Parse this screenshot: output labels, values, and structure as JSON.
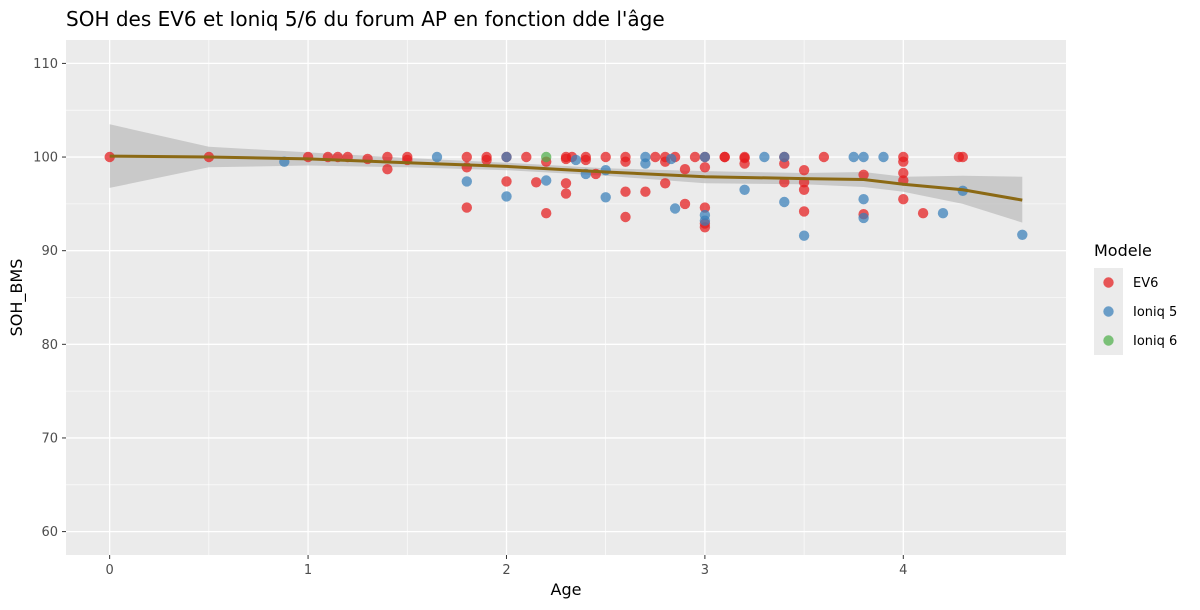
{
  "chart_data": {
    "type": "scatter",
    "title": "SOH des EV6 et Ioniq 5/6 du forum AP en fonction dde l'âge",
    "xlabel": "Age",
    "ylabel": "SOH_BMS",
    "xlim": [
      -0.22,
      4.82
    ],
    "ylim": [
      57.5,
      112.5
    ],
    "xticks": [
      "0",
      "1",
      "2",
      "3",
      "4"
    ],
    "yticks": [
      "60",
      "70",
      "80",
      "90",
      "100",
      "110"
    ],
    "grid": true,
    "legend": {
      "title": "Modele",
      "position": "right"
    },
    "colors": {
      "EV6": "#e41a1c",
      "Ioniq 5": "#377eb8",
      "Ioniq 6": "#4daf4a",
      "smooth": "#8b6914",
      "ribbon": "#bdbdbd",
      "panel": "#ebebeb"
    },
    "series": [
      {
        "name": "EV6",
        "points": [
          [
            0.0,
            100.0
          ],
          [
            0.5,
            100.0
          ],
          [
            1.0,
            100.0
          ],
          [
            1.1,
            100.0
          ],
          [
            1.15,
            100.0
          ],
          [
            1.2,
            100.0
          ],
          [
            1.3,
            99.8
          ],
          [
            1.4,
            100.0
          ],
          [
            1.4,
            98.7
          ],
          [
            1.5,
            100.0
          ],
          [
            1.5,
            99.7
          ],
          [
            1.8,
            100.0
          ],
          [
            1.8,
            98.9
          ],
          [
            1.8,
            94.6
          ],
          [
            1.9,
            100.0
          ],
          [
            1.9,
            99.7
          ],
          [
            2.0,
            100.0
          ],
          [
            2.0,
            97.4
          ],
          [
            2.1,
            100.0
          ],
          [
            2.15,
            97.3
          ],
          [
            2.2,
            99.5
          ],
          [
            2.2,
            94.0
          ],
          [
            2.3,
            100.0
          ],
          [
            2.3,
            99.8
          ],
          [
            2.3,
            97.2
          ],
          [
            2.3,
            96.1
          ],
          [
            2.33,
            100.0
          ],
          [
            2.4,
            100.0
          ],
          [
            2.4,
            99.7
          ],
          [
            2.45,
            98.2
          ],
          [
            2.5,
            100.0
          ],
          [
            2.6,
            100.0
          ],
          [
            2.6,
            99.5
          ],
          [
            2.6,
            96.3
          ],
          [
            2.6,
            93.6
          ],
          [
            2.7,
            96.3
          ],
          [
            2.75,
            100.0
          ],
          [
            2.8,
            100.0
          ],
          [
            2.8,
            99.5
          ],
          [
            2.8,
            97.2
          ],
          [
            2.85,
            100.0
          ],
          [
            2.9,
            98.7
          ],
          [
            2.9,
            95.0
          ],
          [
            2.95,
            100.0
          ],
          [
            3.0,
            100.0
          ],
          [
            3.0,
            98.9
          ],
          [
            3.0,
            94.6
          ],
          [
            3.0,
            92.9
          ],
          [
            3.0,
            92.5
          ],
          [
            3.1,
            100.0
          ],
          [
            3.1,
            100.0
          ],
          [
            3.2,
            100.0
          ],
          [
            3.2,
            99.9
          ],
          [
            3.2,
            99.3
          ],
          [
            3.4,
            100.0
          ],
          [
            3.4,
            99.3
          ],
          [
            3.4,
            97.3
          ],
          [
            3.5,
            98.6
          ],
          [
            3.5,
            97.3
          ],
          [
            3.5,
            96.5
          ],
          [
            3.5,
            94.2
          ],
          [
            3.6,
            100.0
          ],
          [
            3.8,
            98.1
          ],
          [
            3.8,
            93.9
          ],
          [
            4.0,
            100.0
          ],
          [
            4.0,
            99.5
          ],
          [
            4.0,
            98.3
          ],
          [
            4.0,
            97.5
          ],
          [
            4.0,
            95.5
          ],
          [
            4.1,
            94.0
          ],
          [
            4.28,
            100.0
          ],
          [
            4.3,
            100.0
          ]
        ]
      },
      {
        "name": "Ioniq 5",
        "points": [
          [
            0.88,
            99.5
          ],
          [
            1.65,
            100.0
          ],
          [
            1.8,
            97.4
          ],
          [
            2.0,
            100.0
          ],
          [
            2.0,
            95.8
          ],
          [
            2.2,
            97.5
          ],
          [
            2.35,
            99.7
          ],
          [
            2.4,
            98.2
          ],
          [
            2.5,
            98.6
          ],
          [
            2.5,
            95.7
          ],
          [
            2.7,
            100.0
          ],
          [
            2.7,
            99.3
          ],
          [
            2.83,
            99.8
          ],
          [
            2.85,
            94.5
          ],
          [
            3.0,
            100.0
          ],
          [
            3.0,
            93.8
          ],
          [
            3.0,
            93.2
          ],
          [
            3.2,
            96.5
          ],
          [
            3.3,
            100.0
          ],
          [
            3.4,
            100.0
          ],
          [
            3.4,
            95.2
          ],
          [
            3.5,
            91.6
          ],
          [
            3.75,
            100.0
          ],
          [
            3.8,
            100.0
          ],
          [
            3.8,
            95.5
          ],
          [
            3.8,
            93.5
          ],
          [
            3.9,
            100.0
          ],
          [
            4.2,
            94.0
          ],
          [
            4.3,
            96.4
          ],
          [
            4.6,
            91.7
          ]
        ]
      },
      {
        "name": "Ioniq 6",
        "points": [
          [
            2.2,
            100.0
          ]
        ]
      }
    ],
    "smooth": {
      "x": [
        0.0,
        0.5,
        1.0,
        1.5,
        2.0,
        2.5,
        3.0,
        3.5,
        3.8,
        4.0,
        4.3,
        4.6
      ],
      "y": [
        100.1,
        100.0,
        99.8,
        99.4,
        99.0,
        98.4,
        97.9,
        97.7,
        97.6,
        97.1,
        96.5,
        95.4
      ],
      "lower": [
        96.7,
        98.9,
        99.1,
        98.9,
        98.6,
        98.0,
        97.2,
        97.1,
        96.8,
        96.3,
        95.0,
        93.0
      ],
      "upper": [
        103.5,
        101.1,
        100.5,
        99.9,
        99.4,
        98.8,
        98.5,
        98.3,
        98.4,
        97.9,
        98.0,
        97.9
      ]
    }
  }
}
